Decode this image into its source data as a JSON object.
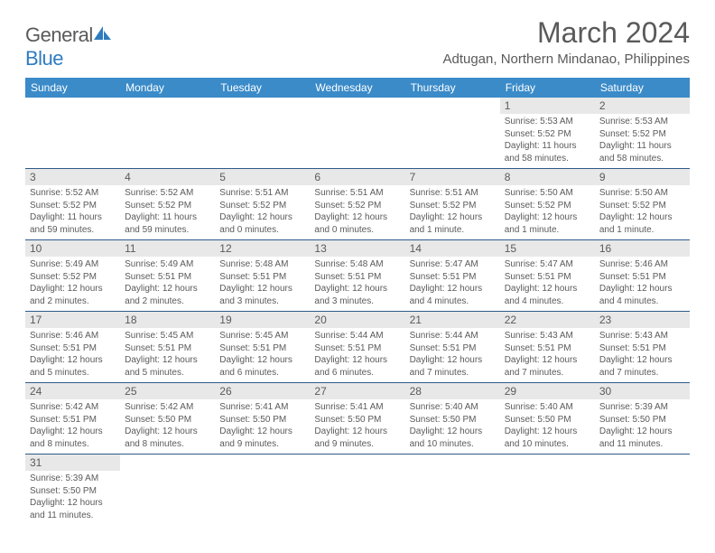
{
  "logo": {
    "text1": "General",
    "text2": "Blue"
  },
  "title": "March 2024",
  "location": "Adtugan, Northern Mindanao, Philippines",
  "colors": {
    "header_bg": "#3b8bc9",
    "header_text": "#ffffff",
    "daynum_bg": "#e8e8e8",
    "text": "#5a5a5a",
    "row_border": "#2e5b8a",
    "accent": "#2e7cc0"
  },
  "day_headers": [
    "Sunday",
    "Monday",
    "Tuesday",
    "Wednesday",
    "Thursday",
    "Friday",
    "Saturday"
  ],
  "grid": [
    [
      null,
      null,
      null,
      null,
      null,
      {
        "n": "1",
        "sr": "5:53 AM",
        "ss": "5:52 PM",
        "dl": "11 hours and 58 minutes."
      },
      {
        "n": "2",
        "sr": "5:53 AM",
        "ss": "5:52 PM",
        "dl": "11 hours and 58 minutes."
      }
    ],
    [
      {
        "n": "3",
        "sr": "5:52 AM",
        "ss": "5:52 PM",
        "dl": "11 hours and 59 minutes."
      },
      {
        "n": "4",
        "sr": "5:52 AM",
        "ss": "5:52 PM",
        "dl": "11 hours and 59 minutes."
      },
      {
        "n": "5",
        "sr": "5:51 AM",
        "ss": "5:52 PM",
        "dl": "12 hours and 0 minutes."
      },
      {
        "n": "6",
        "sr": "5:51 AM",
        "ss": "5:52 PM",
        "dl": "12 hours and 0 minutes."
      },
      {
        "n": "7",
        "sr": "5:51 AM",
        "ss": "5:52 PM",
        "dl": "12 hours and 1 minute."
      },
      {
        "n": "8",
        "sr": "5:50 AM",
        "ss": "5:52 PM",
        "dl": "12 hours and 1 minute."
      },
      {
        "n": "9",
        "sr": "5:50 AM",
        "ss": "5:52 PM",
        "dl": "12 hours and 1 minute."
      }
    ],
    [
      {
        "n": "10",
        "sr": "5:49 AM",
        "ss": "5:52 PM",
        "dl": "12 hours and 2 minutes."
      },
      {
        "n": "11",
        "sr": "5:49 AM",
        "ss": "5:51 PM",
        "dl": "12 hours and 2 minutes."
      },
      {
        "n": "12",
        "sr": "5:48 AM",
        "ss": "5:51 PM",
        "dl": "12 hours and 3 minutes."
      },
      {
        "n": "13",
        "sr": "5:48 AM",
        "ss": "5:51 PM",
        "dl": "12 hours and 3 minutes."
      },
      {
        "n": "14",
        "sr": "5:47 AM",
        "ss": "5:51 PM",
        "dl": "12 hours and 4 minutes."
      },
      {
        "n": "15",
        "sr": "5:47 AM",
        "ss": "5:51 PM",
        "dl": "12 hours and 4 minutes."
      },
      {
        "n": "16",
        "sr": "5:46 AM",
        "ss": "5:51 PM",
        "dl": "12 hours and 4 minutes."
      }
    ],
    [
      {
        "n": "17",
        "sr": "5:46 AM",
        "ss": "5:51 PM",
        "dl": "12 hours and 5 minutes."
      },
      {
        "n": "18",
        "sr": "5:45 AM",
        "ss": "5:51 PM",
        "dl": "12 hours and 5 minutes."
      },
      {
        "n": "19",
        "sr": "5:45 AM",
        "ss": "5:51 PM",
        "dl": "12 hours and 6 minutes."
      },
      {
        "n": "20",
        "sr": "5:44 AM",
        "ss": "5:51 PM",
        "dl": "12 hours and 6 minutes."
      },
      {
        "n": "21",
        "sr": "5:44 AM",
        "ss": "5:51 PM",
        "dl": "12 hours and 7 minutes."
      },
      {
        "n": "22",
        "sr": "5:43 AM",
        "ss": "5:51 PM",
        "dl": "12 hours and 7 minutes."
      },
      {
        "n": "23",
        "sr": "5:43 AM",
        "ss": "5:51 PM",
        "dl": "12 hours and 7 minutes."
      }
    ],
    [
      {
        "n": "24",
        "sr": "5:42 AM",
        "ss": "5:51 PM",
        "dl": "12 hours and 8 minutes."
      },
      {
        "n": "25",
        "sr": "5:42 AM",
        "ss": "5:50 PM",
        "dl": "12 hours and 8 minutes."
      },
      {
        "n": "26",
        "sr": "5:41 AM",
        "ss": "5:50 PM",
        "dl": "12 hours and 9 minutes."
      },
      {
        "n": "27",
        "sr": "5:41 AM",
        "ss": "5:50 PM",
        "dl": "12 hours and 9 minutes."
      },
      {
        "n": "28",
        "sr": "5:40 AM",
        "ss": "5:50 PM",
        "dl": "12 hours and 10 minutes."
      },
      {
        "n": "29",
        "sr": "5:40 AM",
        "ss": "5:50 PM",
        "dl": "12 hours and 10 minutes."
      },
      {
        "n": "30",
        "sr": "5:39 AM",
        "ss": "5:50 PM",
        "dl": "12 hours and 11 minutes."
      }
    ],
    [
      {
        "n": "31",
        "sr": "5:39 AM",
        "ss": "5:50 PM",
        "dl": "12 hours and 11 minutes."
      },
      null,
      null,
      null,
      null,
      null,
      null
    ]
  ],
  "labels": {
    "sunrise": "Sunrise: ",
    "sunset": "Sunset: ",
    "daylight": "Daylight: "
  }
}
